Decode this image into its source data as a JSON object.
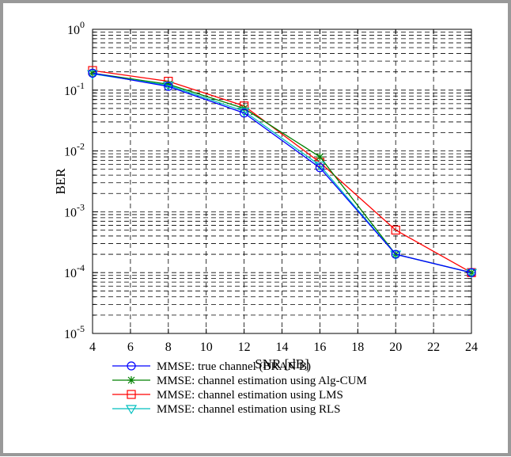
{
  "chart_data": {
    "type": "line",
    "xlabel": "SNR [dB]",
    "ylabel": "BER",
    "xlim": [
      4,
      24
    ],
    "ylim": [
      1e-05,
      1
    ],
    "yscale": "log",
    "x_ticks": [
      "4",
      "6",
      "8",
      "10",
      "12",
      "14",
      "16",
      "18",
      "20",
      "22",
      "24"
    ],
    "y_ticks": [
      {
        "base": "10",
        "exp": "0",
        "value": 1
      },
      {
        "base": "10",
        "exp": "-1",
        "value": 0.1
      },
      {
        "base": "10",
        "exp": "-2",
        "value": 0.01
      },
      {
        "base": "10",
        "exp": "-3",
        "value": 0.001
      },
      {
        "base": "10",
        "exp": "-4",
        "value": 0.0001
      },
      {
        "base": "10",
        "exp": "-5",
        "value": 1e-05
      }
    ],
    "grid": true,
    "legend_position": "below",
    "series": [
      {
        "name": "MMSE: true channel (BRAN B)",
        "color": "#0000ff",
        "marker": "circle",
        "x": [
          4,
          8,
          12,
          16,
          20,
          24
        ],
        "y": [
          0.19,
          0.115,
          0.042,
          0.0053,
          0.0002,
          0.0001
        ]
      },
      {
        "name": "MMSE: channel estimation using Alg-CUM",
        "color": "#008000",
        "marker": "star",
        "x": [
          4,
          8,
          12,
          16,
          20,
          24
        ],
        "y": [
          0.19,
          0.125,
          0.05,
          0.008,
          0.0002,
          0.0001
        ]
      },
      {
        "name": "MMSE: channel estimation using LMS",
        "color": "#ff0000",
        "marker": "square",
        "x": [
          4,
          8,
          12,
          16,
          20,
          24
        ],
        "y": [
          0.21,
          0.14,
          0.055,
          0.0065,
          0.0005,
          0.0001
        ]
      },
      {
        "name": "MMSE: channel estimation using RLS",
        "color": "#00bfbf",
        "marker": "triangle-down",
        "x": [
          4,
          8,
          12,
          16,
          20,
          24
        ],
        "y": [
          0.185,
          0.12,
          0.045,
          0.0058,
          0.0002,
          0.0001
        ]
      }
    ]
  }
}
